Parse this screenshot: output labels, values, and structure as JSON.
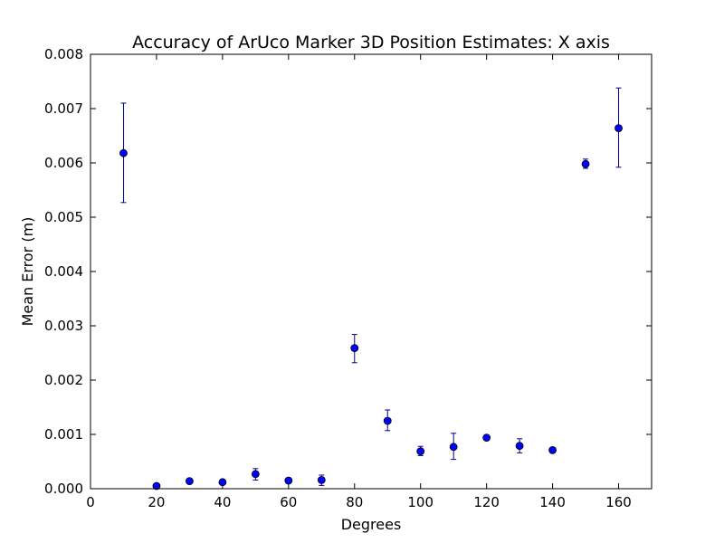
{
  "chart_data": {
    "type": "scatter",
    "title": "Accuracy of ArUco Marker 3D Position Estimates: X axis",
    "xlabel": "Degrees",
    "ylabel": "Mean Error (m)",
    "xlim": [
      0,
      170
    ],
    "ylim": [
      0,
      0.008
    ],
    "xticks": [
      0,
      20,
      40,
      60,
      80,
      100,
      120,
      140,
      160
    ],
    "xtick_labels": [
      "0",
      "20",
      "40",
      "60",
      "80",
      "100",
      "120",
      "140",
      "160"
    ],
    "yticks": [
      0,
      0.001,
      0.002,
      0.003,
      0.004,
      0.005,
      0.006,
      0.007,
      0.008
    ],
    "ytick_labels": [
      "0.000",
      "0.001",
      "0.002",
      "0.003",
      "0.004",
      "0.005",
      "0.006",
      "0.007",
      "0.008"
    ],
    "grid": false,
    "marker_color": "#0000ff",
    "errorbar_color": "#00008b",
    "points": [
      {
        "x": 10,
        "y": 0.00618,
        "err_low": 0.00527,
        "err_high": 0.0071
      },
      {
        "x": 20,
        "y": 5e-05,
        "err_low": 3e-05,
        "err_high": 7e-05
      },
      {
        "x": 30,
        "y": 0.00014,
        "err_low": 0.00011,
        "err_high": 0.00017
      },
      {
        "x": 40,
        "y": 0.00012,
        "err_low": 9e-05,
        "err_high": 0.00015
      },
      {
        "x": 50,
        "y": 0.00027,
        "err_low": 0.00016,
        "err_high": 0.00037
      },
      {
        "x": 60,
        "y": 0.00015,
        "err_low": 0.00012,
        "err_high": 0.00018
      },
      {
        "x": 70,
        "y": 0.00016,
        "err_low": 6e-05,
        "err_high": 0.00025
      },
      {
        "x": 80,
        "y": 0.00259,
        "err_low": 0.00232,
        "err_high": 0.00284
      },
      {
        "x": 90,
        "y": 0.00125,
        "err_low": 0.00107,
        "err_high": 0.00145
      },
      {
        "x": 100,
        "y": 0.00069,
        "err_low": 0.00061,
        "err_high": 0.00078
      },
      {
        "x": 110,
        "y": 0.00077,
        "err_low": 0.00054,
        "err_high": 0.00102
      },
      {
        "x": 120,
        "y": 0.00094,
        "err_low": 0.00091,
        "err_high": 0.00097
      },
      {
        "x": 130,
        "y": 0.00079,
        "err_low": 0.00066,
        "err_high": 0.00092
      },
      {
        "x": 140,
        "y": 0.00071,
        "err_low": 0.00068,
        "err_high": 0.00074
      },
      {
        "x": 150,
        "y": 0.00598,
        "err_low": 0.0059,
        "err_high": 0.00607
      },
      {
        "x": 160,
        "y": 0.00664,
        "err_low": 0.00592,
        "err_high": 0.00738
      }
    ]
  }
}
